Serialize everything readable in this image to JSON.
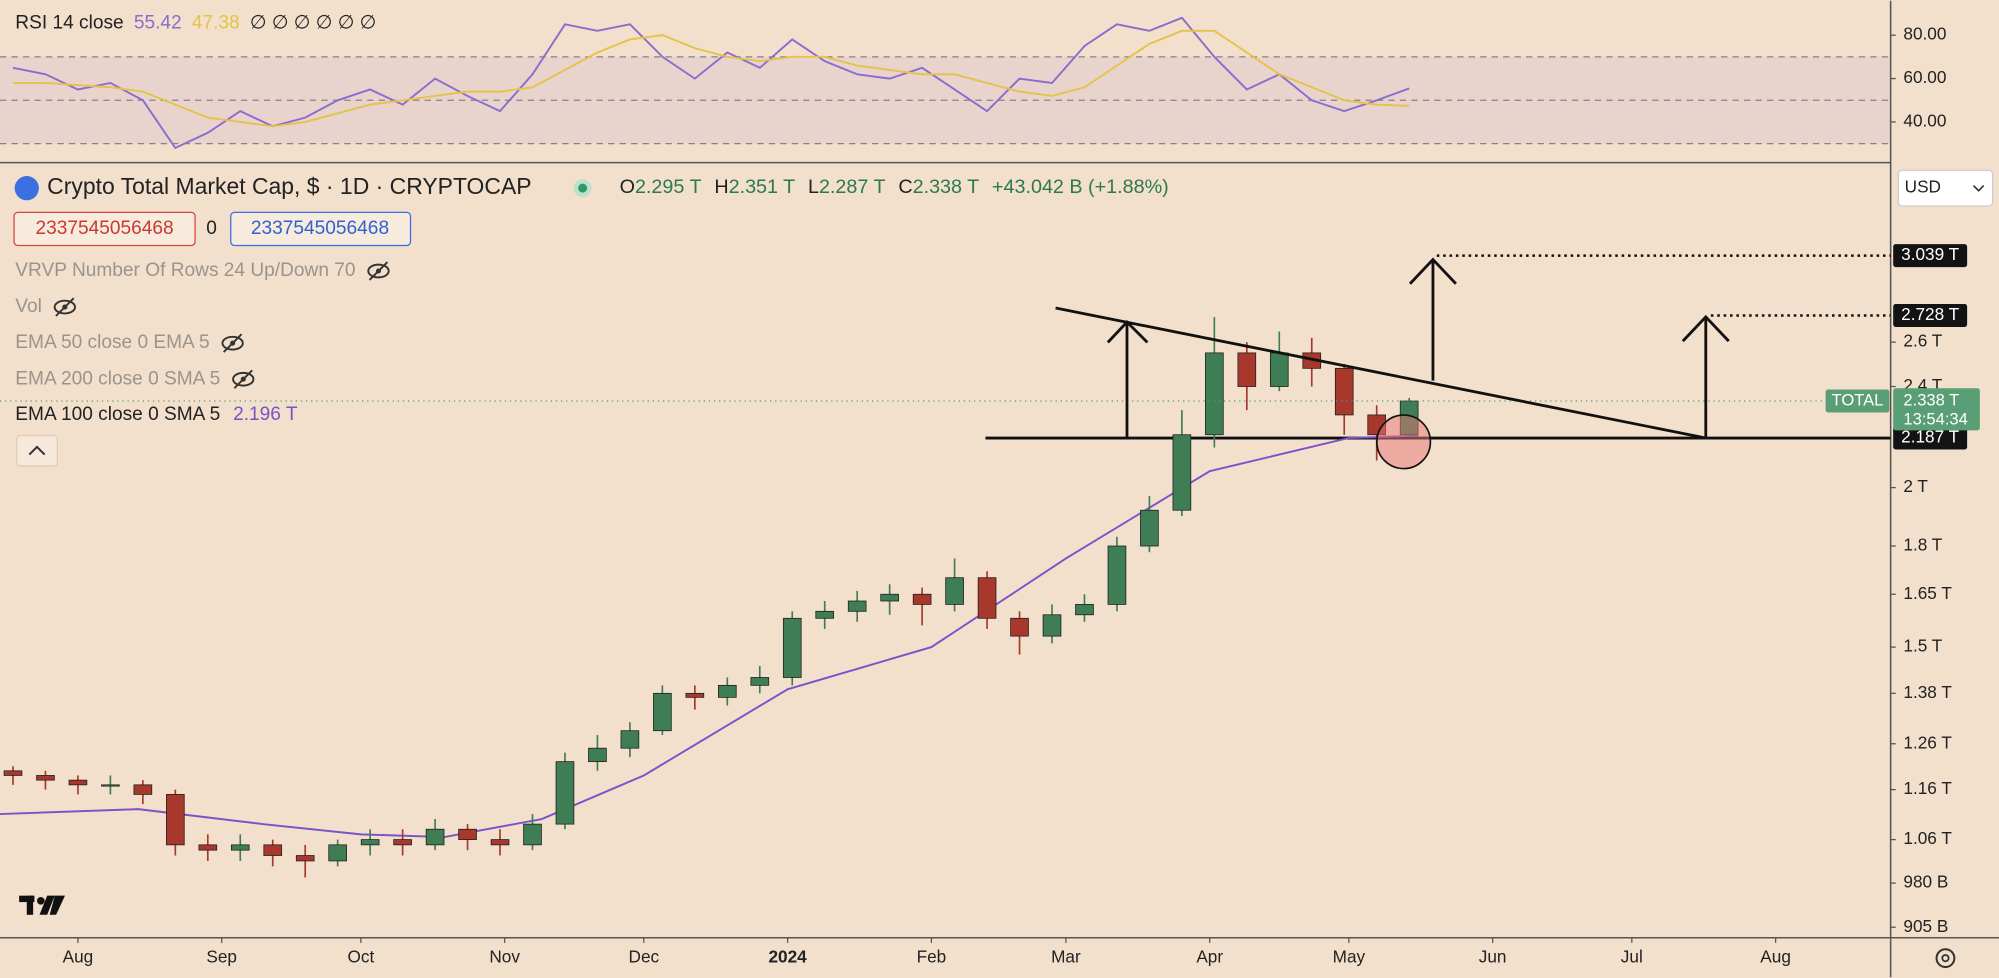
{
  "chart_data": [
    {
      "type": "candlestick",
      "title": "Crypto Total Market Cap, $ · 1D · CRYPTOCAP",
      "x": [
        -14,
        -7,
        0,
        7,
        14,
        21,
        28,
        35,
        42,
        49,
        56,
        63,
        70,
        77,
        84,
        91,
        98,
        105,
        112,
        119,
        126,
        133,
        140,
        147,
        154,
        161,
        168,
        175,
        182,
        189,
        196,
        203,
        210,
        217,
        224,
        231,
        238,
        245,
        252,
        259,
        266,
        273,
        280,
        287
      ],
      "open": [
        1.2,
        1.19,
        1.18,
        1.17,
        1.17,
        1.15,
        1.05,
        1.04,
        1.05,
        1.03,
        1.02,
        1.05,
        1.06,
        1.05,
        1.08,
        1.06,
        1.05,
        1.09,
        1.22,
        1.25,
        1.29,
        1.38,
        1.37,
        1.4,
        1.42,
        1.58,
        1.6,
        1.63,
        1.65,
        1.62,
        1.7,
        1.58,
        1.53,
        1.59,
        1.62,
        1.8,
        1.92,
        2.2,
        2.55,
        2.4,
        2.55,
        2.48,
        2.28,
        2.2
      ],
      "high": [
        1.21,
        1.2,
        1.19,
        1.19,
        1.18,
        1.16,
        1.07,
        1.07,
        1.06,
        1.05,
        1.06,
        1.08,
        1.08,
        1.1,
        1.09,
        1.08,
        1.11,
        1.24,
        1.28,
        1.31,
        1.4,
        1.4,
        1.42,
        1.45,
        1.6,
        1.63,
        1.66,
        1.68,
        1.67,
        1.76,
        1.72,
        1.6,
        1.62,
        1.65,
        1.83,
        1.97,
        2.3,
        2.72,
        2.6,
        2.65,
        2.62,
        2.5,
        2.32,
        2.351
      ],
      "low": [
        1.17,
        1.16,
        1.15,
        1.15,
        1.13,
        1.03,
        1.02,
        1.02,
        1.01,
        0.99,
        1.01,
        1.03,
        1.03,
        1.04,
        1.04,
        1.03,
        1.04,
        1.08,
        1.2,
        1.23,
        1.28,
        1.34,
        1.35,
        1.38,
        1.4,
        1.55,
        1.57,
        1.59,
        1.56,
        1.6,
        1.55,
        1.48,
        1.51,
        1.57,
        1.6,
        1.78,
        1.9,
        2.15,
        2.3,
        2.38,
        2.4,
        2.2,
        2.1,
        2.19
      ],
      "close": [
        1.19,
        1.18,
        1.17,
        1.17,
        1.15,
        1.05,
        1.04,
        1.05,
        1.03,
        1.02,
        1.05,
        1.06,
        1.05,
        1.08,
        1.06,
        1.05,
        1.09,
        1.22,
        1.25,
        1.29,
        1.38,
        1.37,
        1.4,
        1.42,
        1.58,
        1.6,
        1.63,
        1.65,
        1.62,
        1.7,
        1.58,
        1.53,
        1.59,
        1.62,
        1.8,
        1.92,
        2.2,
        2.55,
        2.4,
        2.55,
        2.48,
        2.28,
        2.2,
        2.338
      ],
      "up_color": "#3f7d55",
      "down_color": "#a8372c",
      "log_scale": true,
      "ylim": [
        0.888,
        3.594
      ],
      "yticks": [
        {
          "value": 2.6,
          "label": "2.6 T"
        },
        {
          "value": 2.4,
          "label": "2.4 T"
        },
        {
          "value": 2,
          "label": "2 T"
        },
        {
          "value": 1.8,
          "label": "1.8 T"
        },
        {
          "value": 1.65,
          "label": "1.65 T"
        },
        {
          "value": 1.5,
          "label": "1.5 T"
        },
        {
          "value": 1.38,
          "label": "1.38 T"
        },
        {
          "value": 1.26,
          "label": "1.26 T"
        },
        {
          "value": 1.16,
          "label": "1.16 T"
        },
        {
          "value": 1.06,
          "label": "1.06 T"
        },
        {
          "value": 0.98,
          "label": "980 B"
        },
        {
          "value": 0.905,
          "label": "905 B"
        }
      ],
      "xlim": [
        -16.8,
        390.8
      ],
      "xticks": [
        {
          "value": 0,
          "label": "Aug"
        },
        {
          "value": 31,
          "label": "Sep"
        },
        {
          "value": 61,
          "label": "Oct"
        },
        {
          "value": 92,
          "label": "Nov"
        },
        {
          "value": 122,
          "label": "Dec"
        },
        {
          "value": 153,
          "label": "2024"
        },
        {
          "value": 184,
          "label": "Feb"
        },
        {
          "value": 213,
          "label": "Mar"
        },
        {
          "value": 244,
          "label": "Apr"
        },
        {
          "value": 274,
          "label": "May"
        },
        {
          "value": 305,
          "label": "Jun"
        },
        {
          "value": 335,
          "label": "Jul"
        },
        {
          "value": 366,
          "label": "Aug"
        }
      ],
      "levels": [
        {
          "value": 3.039,
          "label": "3.039 T"
        },
        {
          "value": 2.728,
          "label": "2.728 T"
        },
        {
          "value": 2.187,
          "label": "2.187 T"
        }
      ],
      "ema": {
        "name": "EMA 100 close 0 SMA 5",
        "color": "#7b52c9",
        "value_label": "2.196 T",
        "x": [
          -17,
          13,
          40,
          61,
          79,
          100,
          122,
          153,
          184,
          213,
          244,
          274,
          289
        ],
        "values": [
          1.11,
          1.12,
          1.09,
          1.07,
          1.065,
          1.1,
          1.19,
          1.39,
          1.5,
          1.76,
          2.06,
          2.187,
          2.196
        ]
      },
      "last_price": {
        "symbol": "TOTAL",
        "value": 2.338,
        "label": "2.338 T",
        "countdown": "13:54:34",
        "color": "#5a9e76"
      }
    },
    {
      "type": "line",
      "title": "RSI 14 close",
      "hidden_values": "∅ ∅ ∅ ∅ ∅ ∅",
      "x": [
        -14,
        -7,
        0,
        7,
        14,
        21,
        28,
        35,
        42,
        49,
        56,
        63,
        70,
        77,
        84,
        91,
        98,
        105,
        112,
        119,
        126,
        133,
        140,
        147,
        154,
        161,
        168,
        175,
        182,
        189,
        196,
        203,
        210,
        217,
        224,
        231,
        238,
        245,
        252,
        259,
        266,
        273,
        280,
        287
      ],
      "series": [
        {
          "color": "#8b6ccf",
          "value_label": "55.42",
          "values": [
            65,
            62,
            55,
            58,
            50,
            28,
            35,
            45,
            38,
            42,
            50,
            55,
            48,
            60,
            52,
            45,
            62,
            85,
            82,
            85,
            70,
            60,
            72,
            65,
            78,
            68,
            62,
            60,
            65,
            55,
            45,
            60,
            58,
            75,
            85,
            82,
            88,
            70,
            55,
            62,
            50,
            45,
            50,
            55.42
          ]
        },
        {
          "color": "#e3c44a",
          "value_label": "47.38",
          "values": [
            58,
            58,
            57,
            56,
            54,
            48,
            42,
            40,
            38,
            40,
            44,
            48,
            50,
            52,
            54,
            54,
            56,
            64,
            72,
            78,
            80,
            74,
            70,
            68,
            70,
            70,
            66,
            64,
            62,
            62,
            58,
            54,
            52,
            56,
            66,
            76,
            82,
            82,
            72,
            62,
            56,
            50,
            48,
            47.38
          ]
        }
      ],
      "ylim": [
        22.4,
        95.9
      ],
      "yticks": [
        {
          "value": 80,
          "label": "80.00"
        },
        {
          "value": 60,
          "label": "60.00"
        },
        {
          "value": 40,
          "label": "40.00"
        }
      ],
      "levels": [
        70,
        50,
        30
      ],
      "xlim": [
        -16.8,
        390.8
      ]
    }
  ],
  "legend": [
    {
      "key": "O",
      "value": "2.295 T"
    },
    {
      "key": "H",
      "value": "2.351 T"
    },
    {
      "key": "L",
      "value": "2.287 T"
    },
    {
      "key": "C",
      "value": "2.338 T"
    }
  ],
  "change": "+43.042 B (+1.88%)",
  "inputs": {
    "left": "2337545056468",
    "middle": "0",
    "right": "2337545056468"
  },
  "indicators": [
    {
      "text": "VRVP Number Of Rows 24 Up/Down 70",
      "hidden": true
    },
    {
      "text": "Vol",
      "hidden": true
    },
    {
      "text": "EMA 50 close 0 EMA 5",
      "hidden": true
    },
    {
      "text": "EMA 200 close 0 SMA 5",
      "hidden": true
    }
  ],
  "currency": "USD"
}
